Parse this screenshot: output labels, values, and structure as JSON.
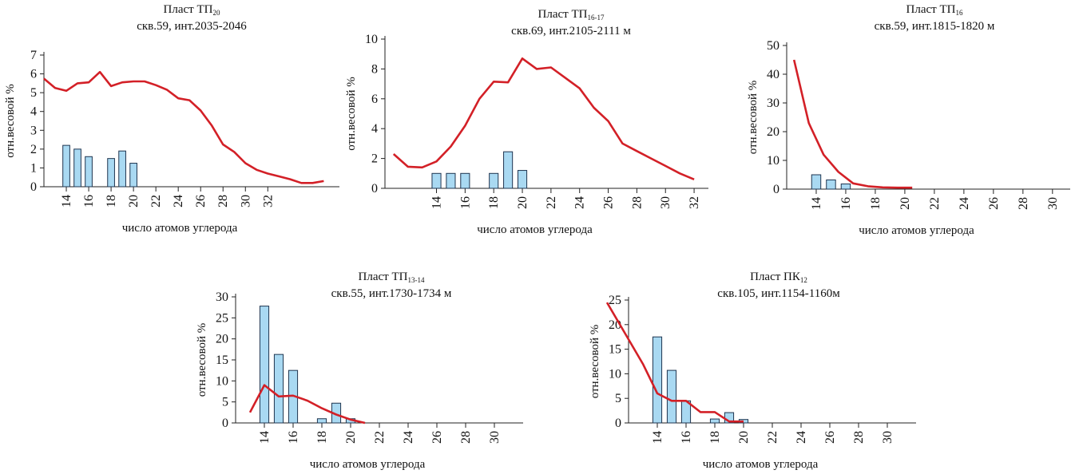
{
  "chart_data": [
    {
      "type": "combo",
      "title": "Пласт ТП",
      "title_subscript": "20",
      "subtitle": "скв.59, инт.2035-2046",
      "y_label": "отн.весовой %",
      "x_label": "число атомов углерода",
      "xlim": [
        12,
        38.4
      ],
      "xticks": [
        14,
        16,
        18,
        20,
        22,
        24,
        26,
        28,
        30,
        32
      ],
      "ylim": [
        0,
        7
      ],
      "yticks": [
        0,
        1,
        2,
        3,
        4,
        5,
        6,
        7
      ],
      "series": [
        {
          "type": "bar",
          "color": "#a9d9f2",
          "x": [
            14,
            15,
            16,
            18,
            19,
            20
          ],
          "values": [
            2.2,
            2.0,
            1.6,
            1.5,
            1.9,
            1.25
          ]
        },
        {
          "type": "line",
          "color": "#d32027",
          "x": [
            12,
            13,
            14,
            15,
            16,
            17,
            18,
            19,
            20,
            21,
            22,
            23,
            24,
            25,
            26,
            27,
            28,
            29,
            30,
            31,
            32,
            33,
            34,
            35,
            36,
            37
          ],
          "values": [
            5.75,
            5.25,
            5.1,
            5.5,
            5.55,
            6.1,
            5.35,
            5.55,
            5.6,
            5.6,
            5.4,
            5.15,
            4.7,
            4.6,
            4.05,
            3.25,
            2.25,
            1.85,
            1.25,
            0.9,
            0.7,
            0.55,
            0.4,
            0.2,
            0.2,
            0.3
          ]
        }
      ]
    },
    {
      "type": "combo",
      "title": "Пласт ТП",
      "title_subscript": "16-17",
      "subtitle": "скв.69, инт.2105-2111 м",
      "y_label": "отн.весовой %",
      "x_label": "число атомов углерода",
      "xlim": [
        10.4,
        33
      ],
      "xticks": [
        14,
        16,
        18,
        20,
        22,
        24,
        26,
        28,
        30,
        32
      ],
      "ylim": [
        0,
        10
      ],
      "yticks": [
        0,
        2,
        4,
        6,
        8,
        10
      ],
      "series": [
        {
          "type": "bar",
          "color": "#a9d9f2",
          "x": [
            14,
            15,
            16,
            18,
            19,
            20
          ],
          "values": [
            1.0,
            1.0,
            1.0,
            1.0,
            2.45,
            1.2
          ]
        },
        {
          "type": "line",
          "color": "#d32027",
          "x": [
            11,
            12,
            13,
            14,
            15,
            16,
            17,
            18,
            19,
            20,
            21,
            22,
            23,
            24,
            25,
            26,
            27,
            28,
            29,
            30,
            31,
            32
          ],
          "values": [
            2.3,
            1.45,
            1.4,
            1.8,
            2.8,
            4.2,
            6.0,
            7.15,
            7.1,
            8.7,
            8.0,
            8.1,
            7.4,
            6.7,
            5.4,
            4.5,
            3.0,
            2.5,
            2.0,
            1.5,
            1.0,
            0.6
          ]
        }
      ]
    },
    {
      "type": "combo",
      "title": "Пласт ТП",
      "title_subscript": "16",
      "subtitle": "скв.59, инт.1815-1820 м",
      "y_label": "отн.весовой %",
      "x_label": "число атомов углерода",
      "xlim": [
        12,
        31.2
      ],
      "xticks": [
        14,
        16,
        18,
        20,
        22,
        24,
        26,
        28,
        30
      ],
      "ylim": [
        0,
        50
      ],
      "yticks": [
        0,
        10,
        20,
        30,
        40,
        50
      ],
      "series": [
        {
          "type": "bar",
          "color": "#a9d9f2",
          "x": [
            14,
            15,
            16
          ],
          "values": [
            5,
            3.2,
            1.8
          ]
        },
        {
          "type": "line",
          "color": "#d32027",
          "x": [
            12.5,
            13.5,
            14.5,
            15.5,
            16.5,
            17.5,
            18.5,
            19.5,
            20.5
          ],
          "values": [
            45,
            23,
            12,
            6,
            2,
            1,
            0.6,
            0.5,
            0.5
          ]
        }
      ]
    },
    {
      "type": "combo",
      "title": "Пласт ТП",
      "title_subscript": "13-14",
      "subtitle": "скв.55, инт.1730-1734 м",
      "y_label": "отн.весовой %",
      "x_label": "число атомов углерода",
      "xlim": [
        12,
        32
      ],
      "xticks": [
        14,
        16,
        18,
        20,
        22,
        24,
        26,
        28,
        30
      ],
      "ylim": [
        0,
        30
      ],
      "yticks": [
        0,
        5,
        10,
        15,
        20,
        25,
        30
      ],
      "series": [
        {
          "type": "bar",
          "color": "#a9d9f2",
          "x": [
            14,
            15,
            16,
            18,
            19,
            20
          ],
          "values": [
            27.8,
            16.3,
            12.5,
            1,
            4.7,
            1
          ]
        },
        {
          "type": "line",
          "color": "#d32027",
          "x": [
            13,
            14,
            15,
            16,
            17,
            18,
            19,
            20,
            21
          ],
          "values": [
            2.5,
            9,
            6.3,
            6.5,
            5.3,
            3.5,
            2,
            0.8,
            0
          ]
        }
      ]
    },
    {
      "type": "combo",
      "title": "Пласт ПК",
      "title_subscript": "12",
      "subtitle": "скв.105, инт.1154-1160м",
      "y_label": "отн.весовой %",
      "x_label": "число атомов углерода",
      "xlim": [
        12,
        32
      ],
      "xticks": [
        14,
        16,
        18,
        20,
        22,
        24,
        26,
        28,
        30
      ],
      "ylim": [
        0,
        25
      ],
      "yticks": [
        0,
        5,
        10,
        15,
        20,
        25
      ],
      "series": [
        {
          "type": "bar",
          "color": "#a9d9f2",
          "x": [
            14,
            15,
            16,
            18,
            19,
            20
          ],
          "values": [
            17.5,
            10.7,
            4.5,
            0.8,
            2.1,
            0.7
          ]
        },
        {
          "type": "line",
          "color": "#d32027",
          "x": [
            10.5,
            11.5,
            13,
            14,
            15,
            16,
            17,
            18,
            19,
            20
          ],
          "values": [
            24.5,
            19.5,
            12,
            6,
            4.5,
            4.5,
            2.2,
            2.2,
            0.3,
            0.3
          ]
        }
      ]
    }
  ]
}
